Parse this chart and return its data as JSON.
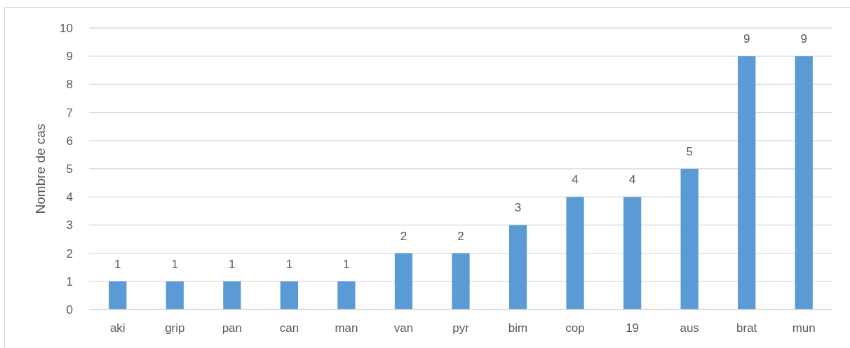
{
  "chart_data": {
    "type": "bar",
    "ylabel": "Nombre de cas",
    "categories": [
      "aki",
      "grip",
      "pan",
      "can",
      "man",
      "van",
      "pyr",
      "bim",
      "cop",
      "19",
      "aus",
      "brat",
      "mun"
    ],
    "values": [
      1,
      1,
      1,
      1,
      1,
      2,
      2,
      3,
      4,
      4,
      5,
      9,
      9
    ],
    "color": "#5b9bd5",
    "ylim": [
      0,
      10
    ],
    "yticks": [
      0,
      1,
      2,
      3,
      4,
      5,
      6,
      7,
      8,
      9,
      10
    ],
    "grid": "y",
    "data_labels": true
  }
}
